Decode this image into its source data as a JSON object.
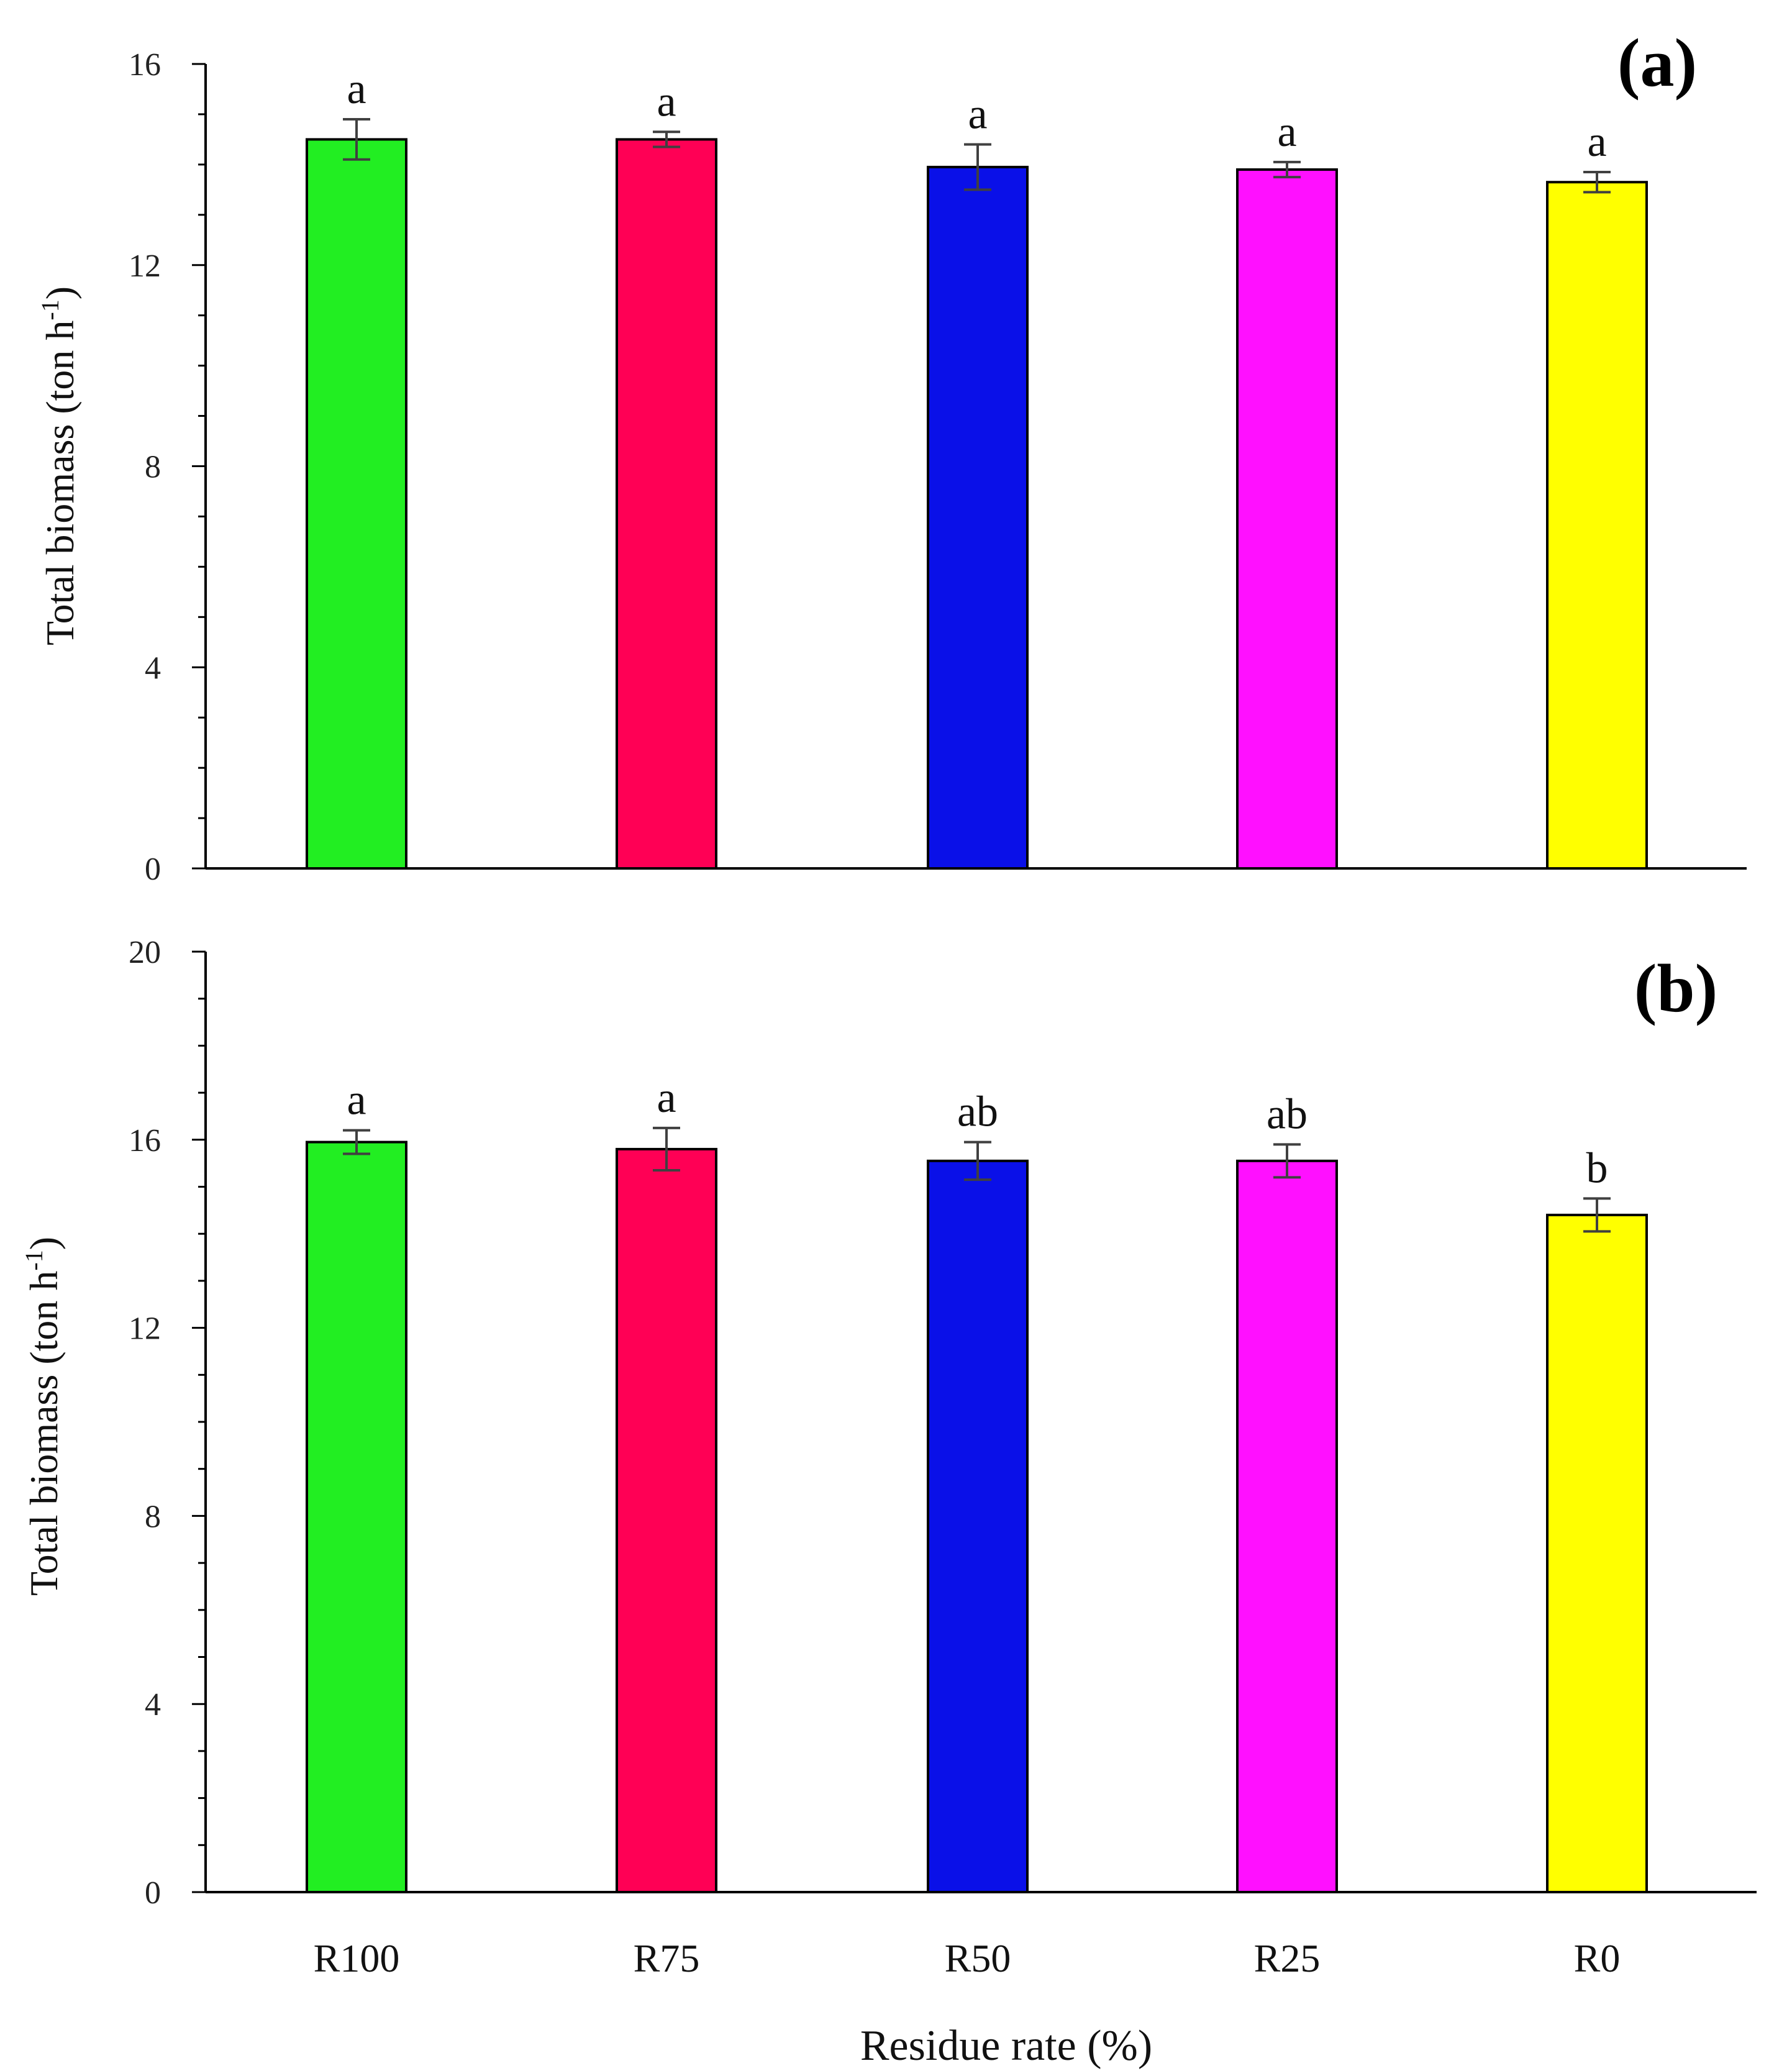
{
  "chart_data": [
    {
      "type": "bar",
      "panel_label": "(a)",
      "categories": [
        "R100",
        "R75",
        "R50",
        "R25",
        "R0"
      ],
      "values": [
        14.5,
        14.5,
        13.95,
        13.9,
        13.65
      ],
      "errors": [
        0.4,
        0.15,
        0.45,
        0.15,
        0.2
      ],
      "significance": [
        "a",
        "a",
        "a",
        "a",
        "a"
      ],
      "colors": [
        "#22ee22",
        "#ff0055",
        "#0a10e8",
        "#ff10ff",
        "#ffff00"
      ],
      "ylabel": "Total biomass (ton h",
      "ylabel_sup": "-1",
      "ylabel_end": ")",
      "ylim": [
        0,
        16
      ],
      "yticks": [
        0,
        4,
        8,
        12,
        16
      ],
      "ytick_labels": [
        "0",
        "4",
        "8",
        "12",
        "16"
      ]
    },
    {
      "type": "bar",
      "panel_label": "(b)",
      "categories": [
        "R100",
        "R75",
        "R50",
        "R25",
        "R0"
      ],
      "category_labels": [
        "R100",
        "R75",
        "R50",
        "R25",
        "R0"
      ],
      "values": [
        15.95,
        15.8,
        15.55,
        15.55,
        14.4
      ],
      "errors": [
        0.25,
        0.45,
        0.4,
        0.35,
        0.35
      ],
      "significance": [
        "a",
        "a",
        "ab",
        "ab",
        "b"
      ],
      "colors": [
        "#22ee22",
        "#ff0055",
        "#0a10e8",
        "#ff10ff",
        "#ffff00"
      ],
      "ylabel": "Total biomass (ton h",
      "ylabel_sup": "-1",
      "ylabel_end": ")",
      "xlabel": "Residue rate (%)",
      "ylim": [
        0,
        20
      ],
      "yticks": [
        0,
        4,
        8,
        12,
        16,
        20
      ],
      "ytick_labels": [
        "0",
        "4",
        "8",
        "12",
        "16",
        "20"
      ]
    }
  ]
}
